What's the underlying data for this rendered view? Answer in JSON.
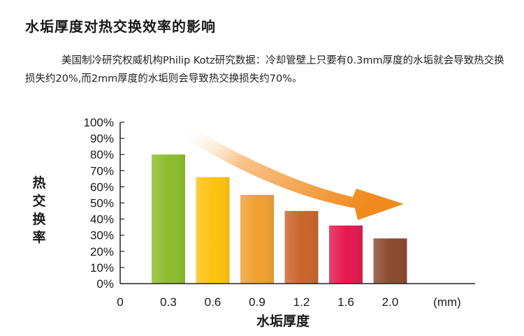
{
  "header": {
    "title": "水垢厚度对热交换效率的影响",
    "description": "美国制冷研究权威机构Philip Kotz研究数据：冷却管壁上只要有0.3mm厚度的水垢就会导致热交换损失约20%,而2mm厚度的水垢则会导致热交换损失约70%。"
  },
  "chart_data": {
    "type": "bar",
    "xlabel": "水垢厚度",
    "ylabel": "热交换率",
    "x_unit": "(mm)",
    "x_origin_label": "0",
    "categories": [
      "0.3",
      "0.6",
      "0.9",
      "1.2",
      "1.6",
      "2.0"
    ],
    "values": [
      80,
      66,
      55,
      45,
      36,
      28
    ],
    "yticks": [
      "100%",
      "90%",
      "80%",
      "70%",
      "60%",
      "50%",
      "40%",
      "30%",
      "20%",
      "10%",
      "0%"
    ],
    "ylim": [
      0,
      100
    ],
    "bar_colors": [
      "#8cbd2c",
      "#ffc20e",
      "#f0a030",
      "#c9652a",
      "#e5194f",
      "#8a4a30"
    ],
    "trend_arrow_color": "#f3952a",
    "grid": false
  }
}
